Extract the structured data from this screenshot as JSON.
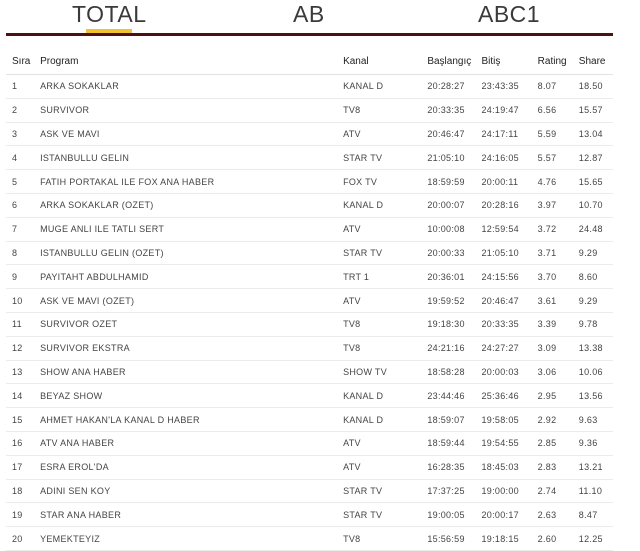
{
  "tabs": [
    {
      "label": "TOTAL",
      "active": true
    },
    {
      "label": "AB",
      "active": false
    },
    {
      "label": "ABC1",
      "active": false
    }
  ],
  "accent_color": "#f2c230",
  "rule_color": "#4a1215",
  "table": {
    "headers": [
      "Sıra",
      "Program",
      "Kanal",
      "Başlangıç",
      "Bitiş",
      "Rating",
      "Share"
    ],
    "rows": [
      [
        "1",
        "ARKA SOKAKLAR",
        "KANAL D",
        "20:28:27",
        "23:43:35",
        "8.07",
        "18.50"
      ],
      [
        "2",
        "SURVIVOR",
        "TV8",
        "20:33:35",
        "24:19:47",
        "6.56",
        "15.57"
      ],
      [
        "3",
        "ASK VE MAVI",
        "ATV",
        "20:46:47",
        "24:17:11",
        "5.59",
        "13.04"
      ],
      [
        "4",
        "ISTANBULLU GELIN",
        "STAR TV",
        "21:05:10",
        "24:16:05",
        "5.57",
        "12.87"
      ],
      [
        "5",
        "FATIH PORTAKAL ILE FOX ANA HABER",
        "FOX TV",
        "18:59:59",
        "20:00:11",
        "4.76",
        "15.65"
      ],
      [
        "6",
        "ARKA SOKAKLAR (OZET)",
        "KANAL D",
        "20:00:07",
        "20:28:16",
        "3.97",
        "10.70"
      ],
      [
        "7",
        "MUGE ANLI ILE TATLI SERT",
        "ATV",
        "10:00:08",
        "12:59:54",
        "3.72",
        "24.48"
      ],
      [
        "8",
        "ISTANBULLU GELIN (OZET)",
        "STAR TV",
        "20:00:33",
        "21:05:10",
        "3.71",
        "9.29"
      ],
      [
        "9",
        "PAYITAHT ABDULHAMID",
        "TRT 1",
        "20:36:01",
        "24:15:56",
        "3.70",
        "8.60"
      ],
      [
        "10",
        "ASK VE MAVI (OZET)",
        "ATV",
        "19:59:52",
        "20:46:47",
        "3.61",
        "9.29"
      ],
      [
        "11",
        "SURVIVOR OZET",
        "TV8",
        "19:18:30",
        "20:33:35",
        "3.39",
        "9.78"
      ],
      [
        "12",
        "SURVIVOR EKSTRA",
        "TV8",
        "24:21:16",
        "24:27:27",
        "3.09",
        "13.38"
      ],
      [
        "13",
        "SHOW ANA HABER",
        "SHOW TV",
        "18:58:28",
        "20:00:03",
        "3.06",
        "10.06"
      ],
      [
        "14",
        "BEYAZ SHOW",
        "KANAL D",
        "23:44:46",
        "25:36:46",
        "2.95",
        "13.56"
      ],
      [
        "15",
        "AHMET HAKAN'LA KANAL D HABER",
        "KANAL D",
        "18:59:07",
        "19:58:05",
        "2.92",
        "9.63"
      ],
      [
        "16",
        "ATV ANA HABER",
        "ATV",
        "18:59:44",
        "19:54:55",
        "2.85",
        "9.36"
      ],
      [
        "17",
        "ESRA EROL'DA",
        "ATV",
        "16:28:35",
        "18:45:03",
        "2.83",
        "13.21"
      ],
      [
        "18",
        "ADINI SEN KOY",
        "STAR TV",
        "17:37:25",
        "19:00:00",
        "2.74",
        "11.10"
      ],
      [
        "19",
        "STAR ANA HABER",
        "STAR TV",
        "19:00:05",
        "20:00:17",
        "2.63",
        "8.47"
      ],
      [
        "20",
        "YEMEKTEYIZ",
        "TV8",
        "15:56:59",
        "19:18:15",
        "2.60",
        "12.25"
      ]
    ]
  }
}
